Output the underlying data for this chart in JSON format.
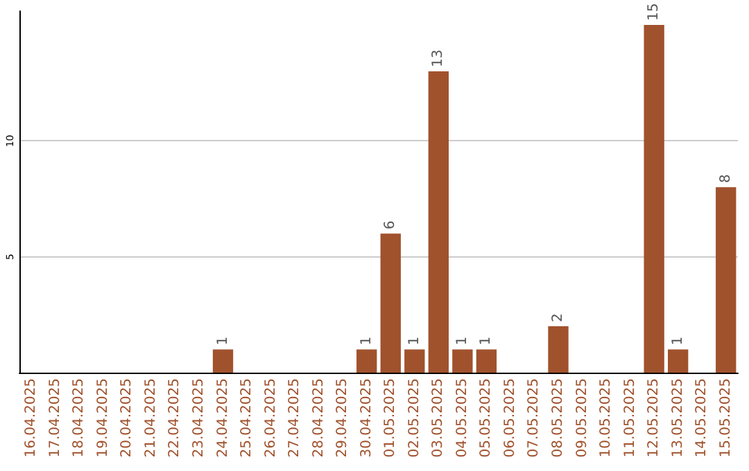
{
  "chart_data": {
    "type": "bar",
    "categories": [
      "16.04.2025",
      "17.04.2025",
      "18.04.2025",
      "19.04.2025",
      "20.04.2025",
      "21.04.2025",
      "22.04.2025",
      "23.04.2025",
      "24.04.2025",
      "25.04.2025",
      "26.04.2025",
      "27.04.2025",
      "28.04.2025",
      "29.04.2025",
      "30.04.2025",
      "01.05.2025",
      "02.05.2025",
      "03.05.2025",
      "04.05.2025",
      "05.05.2025",
      "06.05.2025",
      "07.05.2025",
      "08.05.2025",
      "09.05.2025",
      "10.05.2025",
      "11.05.2025",
      "12.05.2025",
      "13.05.2025",
      "14.05.2025",
      "15.05.2025"
    ],
    "values": [
      0,
      0,
      0,
      0,
      0,
      0,
      0,
      0,
      1,
      0,
      0,
      0,
      0,
      0,
      1,
      6,
      1,
      13,
      1,
      1,
      0,
      0,
      2,
      0,
      0,
      0,
      15,
      1,
      0,
      8
    ],
    "value_labels": [
      null,
      null,
      null,
      null,
      null,
      null,
      null,
      null,
      "1",
      null,
      null,
      null,
      null,
      null,
      "1",
      "6",
      "1",
      "13",
      "1",
      "1",
      null,
      null,
      "2",
      null,
      null,
      null,
      "15",
      "1",
      null,
      "8"
    ],
    "color": "#a0522d",
    "ylim": [
      0,
      15.6
    ],
    "yticks": [
      5,
      10
    ],
    "grid": "y"
  }
}
